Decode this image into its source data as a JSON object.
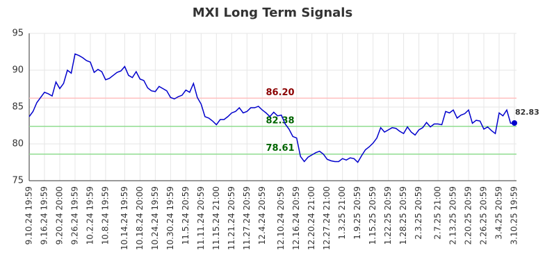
{
  "chart_data": {
    "type": "line",
    "title": "MXI Long Term Signals",
    "categories": [
      "9.10.24 19:59",
      null,
      null,
      null,
      "9.16.24 19:59",
      null,
      null,
      null,
      "9.20.24 20:00",
      null,
      null,
      null,
      "9.26.24 19:59",
      null,
      null,
      null,
      "10.2.24 19:59",
      null,
      null,
      null,
      "10.8.24 19:59",
      null,
      null,
      null,
      null,
      "10.14.24 19:59",
      null,
      null,
      null,
      "10.18.24 20:00",
      null,
      null,
      null,
      "10.24.24 19:59",
      null,
      null,
      null,
      "10.30.24 19:59",
      null,
      null,
      null,
      "11.5.24 20:59",
      null,
      null,
      null,
      "11.11.24 20:59",
      null,
      null,
      null,
      "11.15.24 21:00",
      null,
      null,
      null,
      "11.21.24 20:59",
      null,
      null,
      null,
      "11.27.24 20:59",
      null,
      null,
      null,
      "12.4.24 20:59",
      null,
      null,
      null,
      null,
      "12.10.24 20:59",
      null,
      null,
      null,
      "12.16.24 20:59",
      null,
      null,
      null,
      "12.20.24 21:00",
      null,
      null,
      null,
      "12.27.24 21:00",
      null,
      null,
      null,
      "1.3.25 21:00",
      null,
      null,
      null,
      "1.9.25 20:59",
      null,
      null,
      null,
      "1.15.25 20:59",
      null,
      null,
      null,
      "1.22.25 20:59",
      null,
      null,
      null,
      "1.28.25 20:59",
      null,
      null,
      null,
      "2.3.25 20:59",
      null,
      null,
      null,
      null,
      "2.7.25 21:00",
      null,
      null,
      null,
      "2.13.25 20:59",
      null,
      null,
      null,
      "2.20.25 20:59",
      null,
      null,
      null,
      "2.26.25 20:59",
      null,
      null,
      null,
      "3.4.25 20:59",
      null,
      null,
      null,
      "3.10.25 19:59"
    ],
    "values": [
      83.7,
      84.4,
      85.6,
      86.3,
      87.0,
      86.8,
      86.5,
      88.4,
      87.5,
      88.2,
      90.0,
      89.6,
      92.2,
      92.0,
      91.7,
      91.3,
      91.1,
      89.7,
      90.1,
      89.8,
      88.7,
      88.9,
      89.3,
      89.7,
      89.9,
      90.5,
      89.3,
      89.0,
      89.8,
      88.8,
      88.6,
      87.6,
      87.2,
      87.1,
      87.8,
      87.5,
      87.2,
      86.3,
      86.1,
      86.4,
      86.6,
      87.3,
      87.0,
      88.2,
      86.3,
      85.4,
      83.7,
      83.5,
      83.1,
      82.6,
      83.3,
      83.3,
      83.7,
      84.2,
      84.4,
      84.9,
      84.2,
      84.4,
      84.9,
      84.9,
      85.1,
      84.6,
      84.2,
      83.7,
      84.3,
      83.8,
      83.9,
      82.7,
      82.0,
      81.0,
      80.8,
      78.3,
      77.6,
      78.2,
      78.5,
      78.8,
      79.0,
      78.6,
      77.9,
      77.7,
      77.6,
      77.6,
      78.0,
      77.8,
      78.1,
      78.0,
      77.5,
      78.4,
      79.2,
      79.6,
      80.1,
      80.8,
      82.2,
      81.6,
      81.9,
      82.2,
      82.1,
      81.7,
      81.4,
      82.3,
      81.6,
      81.2,
      81.9,
      82.2,
      82.9,
      82.3,
      82.7,
      82.7,
      82.6,
      84.4,
      84.2,
      84.6,
      83.5,
      83.9,
      84.1,
      84.6,
      82.8,
      83.2,
      83.1,
      82.0,
      82.3,
      81.8,
      81.4,
      84.2,
      83.8,
      84.6,
      82.8,
      82.83
    ],
    "color": "#0000cc",
    "ylim": [
      75,
      95
    ],
    "yticks": [
      75,
      80,
      85,
      90,
      95
    ],
    "grid": true,
    "hlines": [
      {
        "value": 86.2,
        "label": "86.20",
        "color": "#ffc0c0",
        "text_color": "#8b0000"
      },
      {
        "value": 82.38,
        "color": "#90dc90",
        "text_color": "#006400"
      },
      {
        "value": 78.61,
        "color": "#90dc90",
        "text_color": "#006400"
      }
    ]
  }
}
